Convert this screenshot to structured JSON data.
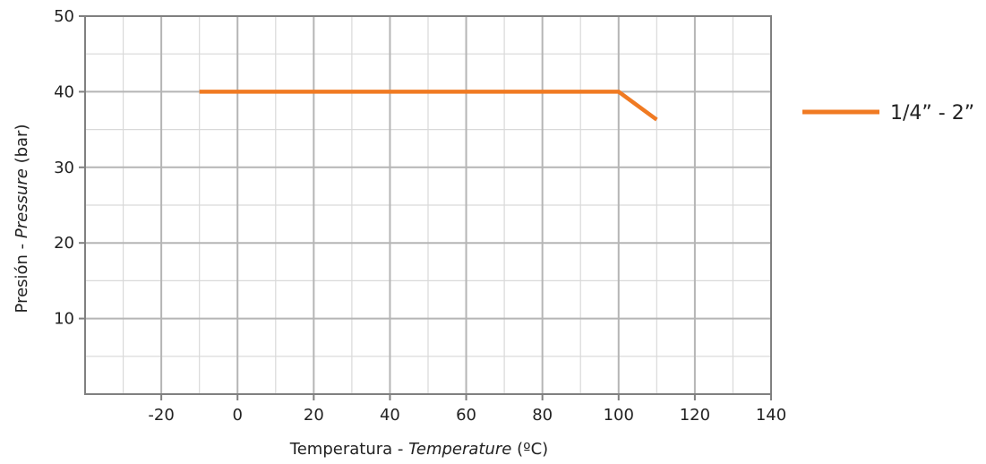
{
  "chart_data": {
    "type": "line",
    "title": "",
    "xlabel": {
      "plain": "Temperatura - ",
      "italic": "Temperature",
      "unit": " (ºC)"
    },
    "ylabel": {
      "plain": "Presión - ",
      "italic": "Pressure",
      "unit": "  (bar)"
    },
    "xlim": [
      -40,
      140
    ],
    "ylim": [
      0,
      50
    ],
    "xticks": [
      -20,
      0,
      20,
      40,
      60,
      80,
      100,
      120,
      140
    ],
    "yticks": [
      10,
      20,
      30,
      40,
      50
    ],
    "grid": true,
    "legend_position": "right",
    "series": [
      {
        "name": "1/4” - 2”",
        "color": "#f07a22",
        "x": [
          -10,
          100,
          110
        ],
        "y": [
          40,
          40,
          36.3
        ]
      }
    ]
  }
}
